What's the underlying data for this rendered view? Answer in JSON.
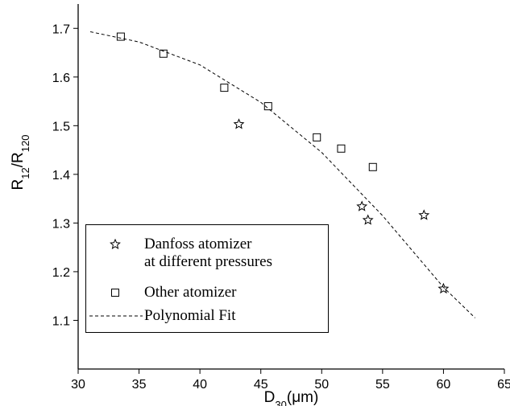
{
  "chart_data": {
    "type": "scatter",
    "x_label": [
      "D",
      "30",
      "(μm)"
    ],
    "y_label": [
      "R",
      "12",
      "/R",
      "120"
    ],
    "xlim": [
      30,
      65
    ],
    "xticks": [
      30,
      35,
      40,
      45,
      50,
      55,
      60,
      65
    ],
    "ylim": [
      1.0,
      1.75
    ],
    "yticks": [
      1.1,
      1.2,
      1.3,
      1.4,
      1.5,
      1.6,
      1.7
    ],
    "series": [
      {
        "name": "Danfoss atomizer\nat different pressures",
        "type": "scatter",
        "marker": "star",
        "color": "#000000",
        "x": [
          43.2,
          53.3,
          53.8,
          58.4,
          60.0
        ],
        "values": [
          1.503,
          1.334,
          1.306,
          1.316,
          1.165
        ]
      },
      {
        "name": "Other atomizer",
        "type": "scatter",
        "marker": "square",
        "color": "#000000",
        "x": [
          33.5,
          37.0,
          42.0,
          45.6,
          49.6,
          51.6,
          54.2
        ],
        "values": [
          1.683,
          1.648,
          1.578,
          1.54,
          1.476,
          1.453,
          1.415
        ]
      },
      {
        "name": "Polynomial Fit",
        "type": "line",
        "dashed": true,
        "color": "#000000",
        "x": [
          31,
          35,
          40,
          45,
          50,
          55,
          60,
          62.6
        ],
        "values": [
          1.693,
          1.672,
          1.625,
          1.548,
          1.445,
          1.315,
          1.168,
          1.105
        ]
      }
    ]
  }
}
